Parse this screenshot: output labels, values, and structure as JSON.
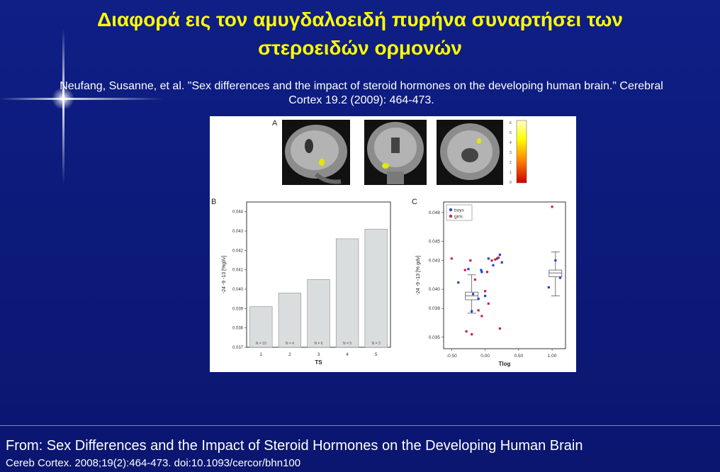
{
  "slide": {
    "title_line1": "Διαφορά εις τον αμυγδαλοειδή πυρήνα συναρτήσει των",
    "title_line2": "στεροειδών ορμονών",
    "reference_line1": "Neufang, Susanne, et al. \"Sex differences and the impact of steroid hormones on the developing human brain.\" Cerebral",
    "reference_line2": "Cortex 19.2 (2009): 464-473.",
    "footer_line1": "From: Sex Differences and the Impact of Steroid Hormones on the Developing Human Brain",
    "footer_line2": "Cereb Cortex. 2008;19(2):464-473. doi:10.1093/cercor/bhn100"
  },
  "figure": {
    "panel_a_label": "A",
    "panel_b_label": "B",
    "panel_c_label": "C",
    "colorbar_ticks": [
      "6",
      "5",
      "4",
      "3",
      "2",
      "1",
      "0"
    ],
    "legend": [
      {
        "label": "boys",
        "color": "#2244cc"
      },
      {
        "label": "girls",
        "color": "#cc2244"
      }
    ]
  },
  "chart_data": [
    {
      "type": "bar",
      "panel": "B",
      "xlabel": "TS",
      "ylabel": "-24 -9 -13 [%gl/v]",
      "categories": [
        "1",
        "2",
        "3",
        "4",
        "5"
      ],
      "values": [
        0.0391,
        0.0398,
        0.0405,
        0.0426,
        0.0431
      ],
      "bar_labels": [
        "N = 10",
        "N = 4",
        "N = 6",
        "N = 5",
        "N = 3"
      ],
      "yticks": [
        "0.044",
        "0.043",
        "0.042",
        "0.041",
        "0.040",
        "0.039",
        "0.038",
        "0.037"
      ],
      "ylim": [
        0.037,
        0.0445
      ]
    },
    {
      "type": "scatter",
      "panel": "C",
      "xlabel": "Tlog",
      "ylabel": "-24 -9 -13 [% gdv]",
      "xticks": [
        "-0.50",
        "0.00",
        "0.50",
        "1.00"
      ],
      "yticks": [
        "0.048",
        "0.045",
        "0.043",
        "0.040",
        "0.038",
        "0.035"
      ],
      "xlim": [
        -0.62,
        1.2
      ],
      "ylim": [
        0.0338,
        0.0491
      ],
      "series": [
        {
          "name": "boys",
          "color": "#2244cc",
          "x": [
            -0.4,
            -0.25,
            -0.18,
            -0.1,
            -0.06,
            0.05,
            0.12,
            0.18,
            0.22,
            0.25,
            -0.2,
            0.0,
            -0.05,
            0.95,
            1.05,
            1.12
          ],
          "y": [
            0.0407,
            0.0421,
            0.0395,
            0.039,
            0.042,
            0.0432,
            0.0425,
            0.0432,
            0.0436,
            0.0428,
            0.0377,
            0.0393,
            0.0418,
            0.0402,
            0.043,
            0.0412
          ]
        },
        {
          "name": "girls",
          "color": "#cc2244",
          "x": [
            -0.5,
            -0.3,
            -0.22,
            -0.15,
            -0.1,
            -0.05,
            0.0,
            0.03,
            0.1,
            0.2,
            0.22,
            -0.28,
            -0.2,
            0.05,
            0.15,
            1.0
          ],
          "y": [
            0.0432,
            0.042,
            0.043,
            0.041,
            0.0378,
            0.0372,
            0.0398,
            0.0418,
            0.043,
            0.0433,
            0.0359,
            0.0356,
            0.0353,
            0.0385,
            0.0431,
            0.0486
          ]
        }
      ],
      "boxes": [
        {
          "x": -0.2,
          "median": 0.0393,
          "q1": 0.0389,
          "q3": 0.0397,
          "whisker_low": 0.0375,
          "whisker_high": 0.0415
        },
        {
          "x": 1.05,
          "median": 0.0417,
          "q1": 0.0413,
          "q3": 0.042,
          "whisker_low": 0.0393,
          "whisker_high": 0.0439
        }
      ]
    }
  ]
}
